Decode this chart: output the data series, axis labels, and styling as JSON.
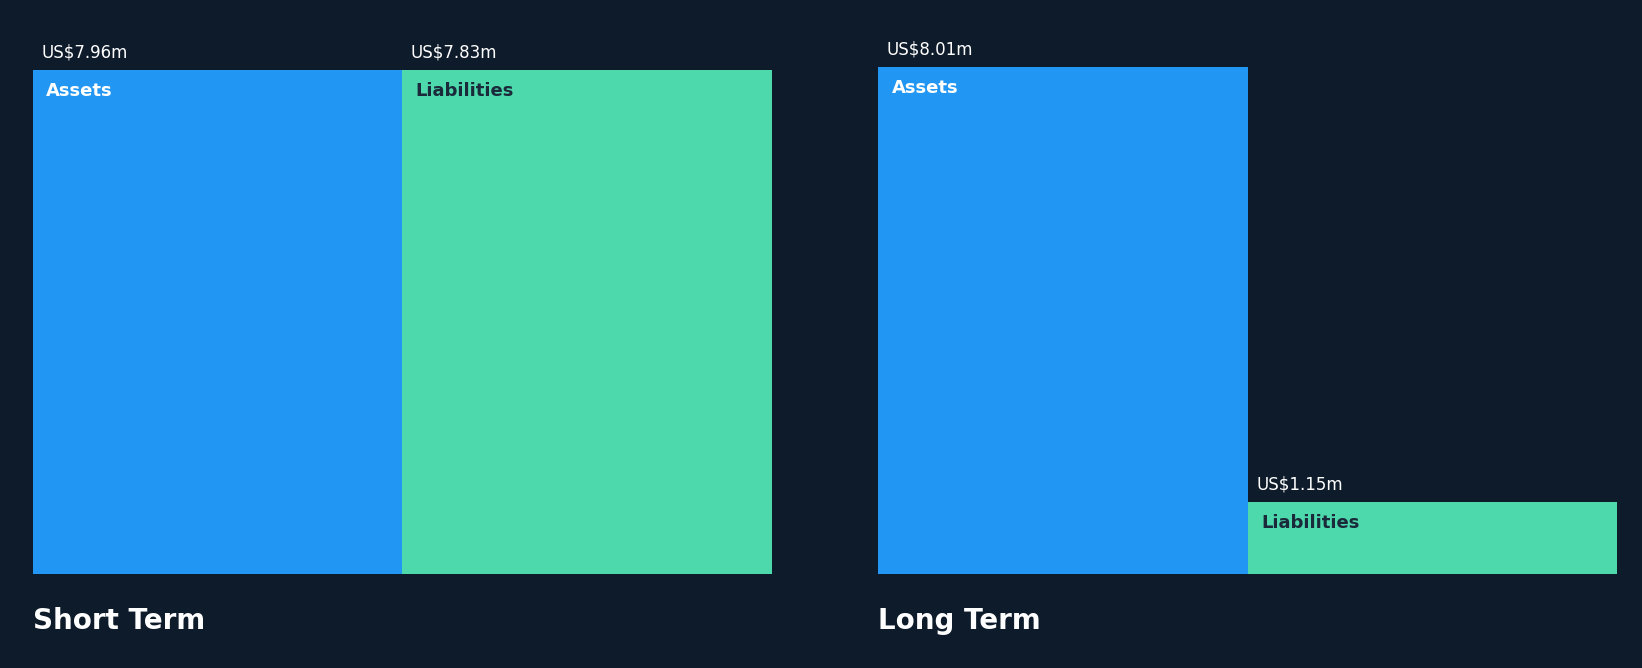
{
  "background_color": "#0d1b2a",
  "short_term": {
    "label": "Short Term",
    "assets": {
      "value": 7.96,
      "label": "US$7.96m",
      "bar_label": "Assets",
      "color": "#2196f3"
    },
    "liabilities": {
      "value": 7.83,
      "label": "US$7.83m",
      "bar_label": "Liabilities",
      "color": "#4dd9ac"
    }
  },
  "long_term": {
    "label": "Long Term",
    "assets": {
      "value": 8.01,
      "label": "US$8.01m",
      "bar_label": "Assets",
      "color": "#2196f3"
    },
    "liabilities": {
      "value": 1.15,
      "label": "US$1.15m",
      "bar_label": "Liabilities",
      "color": "#4dd9ac"
    }
  },
  "section_label_fontsize": 20,
  "value_label_fontsize": 12,
  "bar_label_fontsize": 13,
  "text_color": "#ffffff",
  "liabilities_text_color": "#1a2a3a",
  "section_title_color": "#ffffff"
}
